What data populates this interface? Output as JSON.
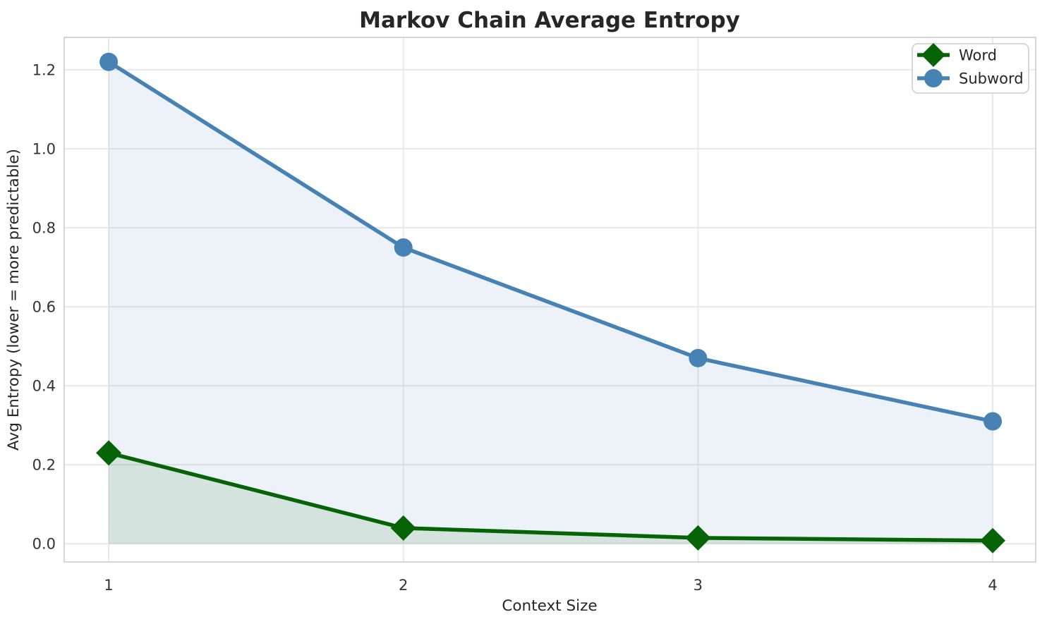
{
  "chart_data": {
    "type": "line",
    "title": "Markov Chain Average Entropy",
    "xlabel": "Context Size",
    "ylabel": "Avg Entropy (lower = more predictable)",
    "x": [
      1,
      2,
      3,
      4
    ],
    "series": [
      {
        "name": "Word",
        "values": [
          0.23,
          0.04,
          0.015,
          0.008
        ],
        "color": "#066406",
        "fill": "rgba(0,100,0,0.10)",
        "marker": "diamond",
        "marker_size": 18,
        "linewidth": 5.5
      },
      {
        "name": "Subword",
        "values": [
          1.22,
          0.75,
          0.47,
          0.31
        ],
        "color": "#4682b4",
        "fill": "rgba(70,130,180,0.10)",
        "marker": "circle",
        "marker_size": 13,
        "linewidth": 5.5
      }
    ],
    "xticks": [
      1,
      2,
      3,
      4
    ],
    "xtick_labels": [
      "1",
      "2",
      "3",
      "4"
    ],
    "yticks": [
      0.0,
      0.2,
      0.4,
      0.6,
      0.8,
      1.0,
      1.2
    ],
    "ytick_labels": [
      "0.0",
      "0.2",
      "0.4",
      "0.6",
      "0.8",
      "1.0",
      "1.2"
    ],
    "xlim": [
      0.849,
      4.146
    ],
    "ylim": [
      -0.046,
      1.282
    ],
    "fill_baseline": 0,
    "grid": true,
    "grid_color": "#e9e9e9",
    "spine_color": "#cccccc",
    "legend_position": "upper right",
    "background": "#ffffff"
  }
}
